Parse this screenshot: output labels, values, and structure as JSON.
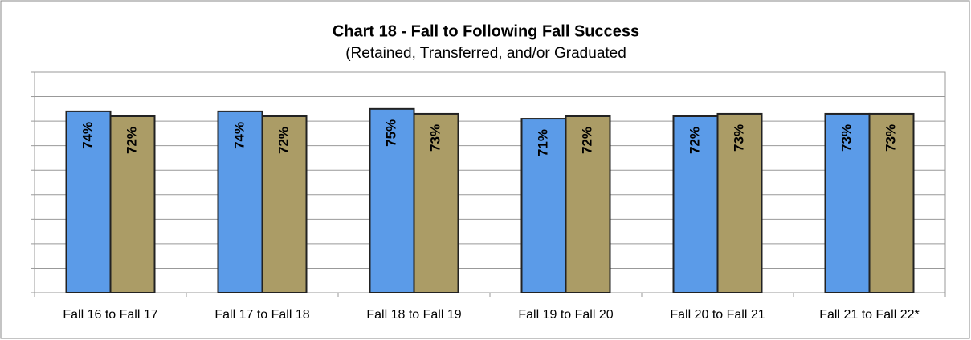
{
  "chart_data": {
    "type": "bar",
    "title": "Chart 18 - Fall to Following Fall Success",
    "subtitle": "(Retained, Transferred, and/or Graduated",
    "categories": [
      "Fall 16 to Fall 17",
      "Fall 17 to Fall 18",
      "Fall 18 to Fall 19",
      "Fall 19 to Fall 20",
      "Fall 20 to Fall 21",
      "Fall 21 to Fall 22*"
    ],
    "series": [
      {
        "color": "#5b9be8",
        "values": [
          74,
          74,
          75,
          71,
          72,
          73
        ],
        "value_labels": [
          "74%",
          "74%",
          "75%",
          "71%",
          "72%",
          "73%"
        ]
      },
      {
        "color": "#ab9c66",
        "values": [
          72,
          72,
          73,
          72,
          73,
          73
        ],
        "value_labels": [
          "72%",
          "72%",
          "73%",
          "72%",
          "73%",
          "73%"
        ]
      }
    ],
    "ylim": [
      0,
      90
    ],
    "yticks": [
      0,
      10,
      20,
      30,
      40,
      50,
      60,
      70,
      80,
      90
    ],
    "grid": true
  }
}
